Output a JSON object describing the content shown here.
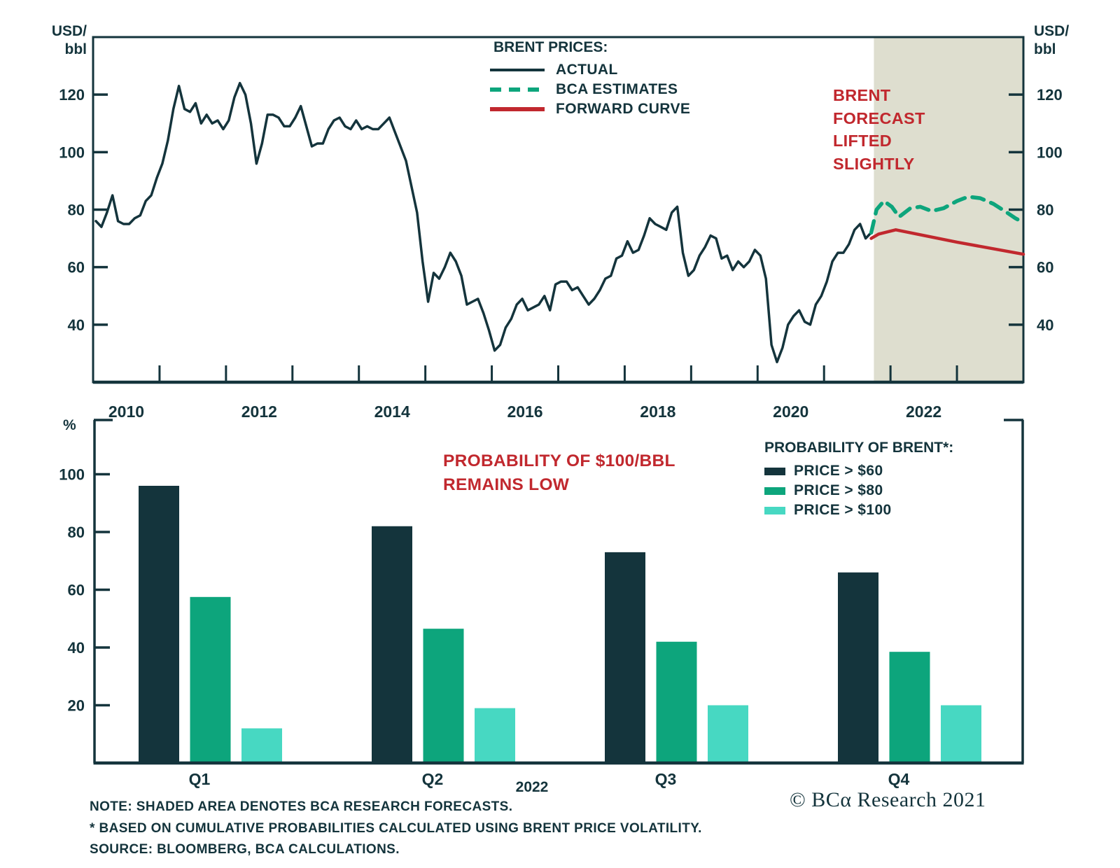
{
  "colors": {
    "dark": "#14343c",
    "green": "#0da57c",
    "teal": "#47d8c2",
    "red": "#c1282e",
    "shade": "#dedecf"
  },
  "top_chart": {
    "y_axis_unit_line1": "USD/",
    "y_axis_unit_line2": "bbl",
    "legend": {
      "title": "BRENT PRICES:",
      "items": [
        {
          "label": "ACTUAL",
          "style": "solid",
          "color_key": "dark"
        },
        {
          "label": "BCA ESTIMATES",
          "style": "dashed",
          "color_key": "green"
        },
        {
          "label": "FORWARD CURVE",
          "style": "solid",
          "color_key": "red"
        }
      ]
    },
    "annotation": {
      "lines": [
        "BRENT",
        "FORECAST",
        "LIFTED",
        "SLIGHTLY"
      ]
    }
  },
  "bottom_chart": {
    "percent_label": "%",
    "annotation": {
      "lines": [
        "PROBABILITY OF $100/BBL",
        "REMAINS LOW"
      ]
    },
    "legend": {
      "title": "PROBABILITY OF BRENT*:",
      "items": [
        {
          "label": "PRICE > $60",
          "color_key": "dark"
        },
        {
          "label": "PRICE > $80",
          "color_key": "green"
        },
        {
          "label": "PRICE > $100",
          "color_key": "teal"
        }
      ]
    },
    "x_group_label": "2022"
  },
  "footer": {
    "note": "NOTE: SHADED AREA DENOTES BCA RESEARCH FORECASTS.",
    "footnote": "* BASED ON CUMULATIVE PROBABILITIES CALCULATED USING BRENT PRICE VOLATILITY.",
    "source": "SOURCE: BLOOMBERG, BCA CALCULATIONS.",
    "logo": "© BCα Research 2021"
  },
  "chart_data": [
    {
      "type": "line",
      "title": "Brent prices: actual, BCA estimates and forward curve (USD/bbl)",
      "x_axis": {
        "min": 2010,
        "max": 2024,
        "tick_interval": 1,
        "labels": [
          2010,
          2012,
          2014,
          2016,
          2018,
          2020,
          2022
        ]
      },
      "y_axis": {
        "min": 20,
        "max": 140,
        "ticks": [
          40,
          60,
          80,
          100,
          120
        ],
        "unit": "USD/bbl"
      },
      "forecast_shading": {
        "from": 2021.75,
        "to": 2024
      },
      "series": [
        {
          "name": "ACTUAL",
          "style": "solid",
          "color_key": "dark",
          "x_start": 2010.042,
          "x_step": 0.083333,
          "values": [
            76,
            74,
            79,
            85,
            76,
            75,
            75,
            77,
            78,
            83,
            85,
            91,
            96,
            104,
            115,
            123,
            115,
            114,
            117,
            110,
            113,
            110,
            111,
            108,
            111,
            119,
            124,
            120,
            110,
            96,
            103,
            113,
            113,
            112,
            109,
            109,
            112,
            116,
            109,
            102,
            103,
            103,
            108,
            111,
            112,
            109,
            108,
            111,
            108,
            109,
            108,
            108,
            110,
            112,
            107,
            102,
            97,
            88,
            79,
            62,
            48,
            58,
            56,
            60,
            65,
            62,
            57,
            47,
            48,
            49,
            44,
            38,
            31,
            33,
            39,
            42,
            47,
            49,
            45,
            46,
            47,
            50,
            45,
            54,
            55,
            55,
            52,
            53,
            50,
            47,
            49,
            52,
            56,
            57,
            63,
            64,
            69,
            65,
            66,
            71,
            77,
            75,
            74,
            73,
            79,
            81,
            65,
            57,
            59,
            64,
            67,
            71,
            70,
            63,
            64,
            59,
            62,
            60,
            62,
            66,
            64,
            56,
            33,
            27,
            32,
            40,
            43,
            45,
            41,
            40,
            47,
            50,
            55,
            62,
            65,
            65,
            68,
            73,
            75,
            70,
            72
          ]
        },
        {
          "name": "BCA ESTIMATES",
          "style": "dashed",
          "color_key": "green",
          "points": [
            [
              2021.71,
              72
            ],
            [
              2021.79,
              80
            ],
            [
              2021.9,
              83
            ],
            [
              2022.02,
              81
            ],
            [
              2022.13,
              77.5
            ],
            [
              2022.3,
              80.5
            ],
            [
              2022.45,
              81
            ],
            [
              2022.62,
              79.5
            ],
            [
              2022.8,
              80.5
            ],
            [
              2023.0,
              83
            ],
            [
              2023.17,
              84.5
            ],
            [
              2023.35,
              84
            ],
            [
              2023.55,
              82
            ],
            [
              2023.72,
              79.5
            ],
            [
              2023.88,
              77
            ],
            [
              2024.0,
              75.5
            ]
          ]
        },
        {
          "name": "FORWARD CURVE",
          "style": "solid",
          "color_key": "red",
          "points": [
            [
              2021.71,
              70
            ],
            [
              2021.82,
              71.5
            ],
            [
              2022.08,
              73
            ],
            [
              2023.0,
              68.7
            ],
            [
              2024.0,
              64.5
            ]
          ]
        }
      ]
    },
    {
      "type": "bar",
      "title": "Probability of Brent price thresholds, 2022",
      "categories": [
        "Q1",
        "Q2",
        "Q3",
        "Q4"
      ],
      "x_label": "2022",
      "ylabel": "%",
      "y_ticks": [
        20,
        40,
        60,
        80,
        100
      ],
      "ylim": [
        0,
        118
      ],
      "series": [
        {
          "name": "PRICE > $60",
          "color_key": "dark",
          "values": [
            96,
            82,
            73,
            66
          ]
        },
        {
          "name": "PRICE > $80",
          "color_key": "green",
          "values": [
            57.5,
            46.5,
            42,
            38.5
          ]
        },
        {
          "name": "PRICE > $100",
          "color_key": "teal",
          "values": [
            12,
            19,
            20,
            20
          ]
        }
      ]
    }
  ]
}
